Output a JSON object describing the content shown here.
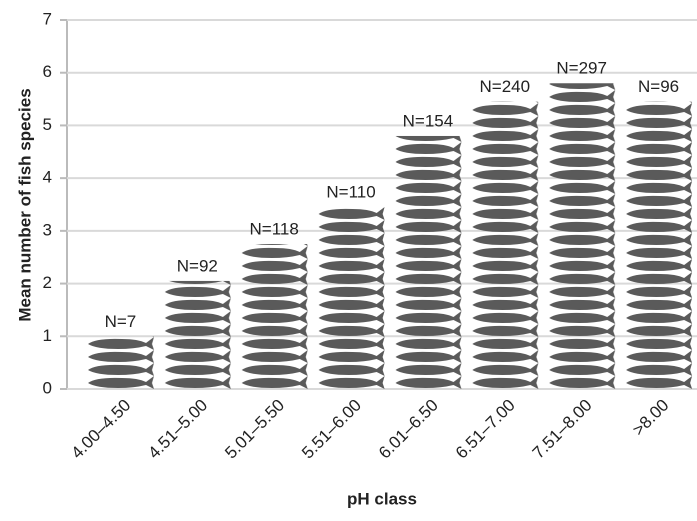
{
  "chart_data": {
    "type": "bar",
    "y_label": "Mean number of  fish species",
    "x_label": "pH class",
    "categories": [
      "4.00–4.50",
      "4.51–5.00",
      "5.01–5.50",
      "5.51–6.00",
      "6.01–6.50",
      "6.51–7.00",
      "7.51–8.00",
      ">8.00"
    ],
    "values": [
      1.0,
      2.05,
      2.75,
      3.45,
      4.8,
      5.45,
      5.8,
      5.45
    ],
    "annotations": [
      "N=7",
      "N=92",
      "N=118",
      "N=110",
      "N=154",
      "N=240",
      "N=297",
      "N=96"
    ],
    "color": "#5a5a5a",
    "ylim": [
      0,
      7
    ],
    "yticks": [
      0,
      1,
      2,
      3,
      4,
      5,
      6,
      7
    ],
    "grid": true
  }
}
